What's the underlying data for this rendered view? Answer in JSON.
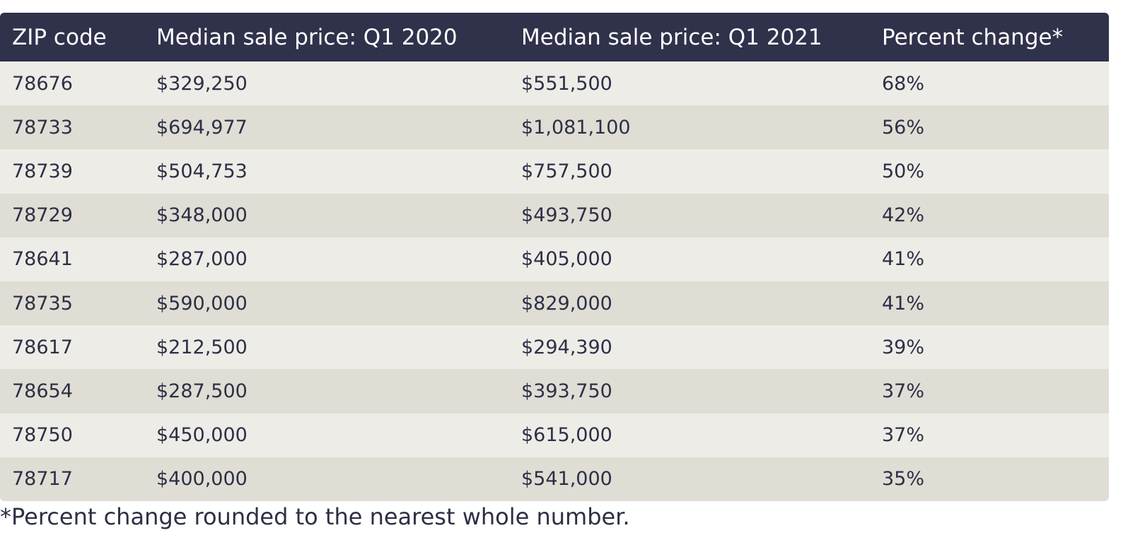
{
  "table": {
    "headers": [
      "ZIP code",
      "Median sale price: Q1 2020",
      "Median sale price: Q1 2021",
      "Percent change*"
    ],
    "rows": [
      [
        "78676",
        "$329,250",
        "$551,500",
        "68%"
      ],
      [
        "78733",
        "$694,977",
        "$1,081,100",
        "56%"
      ],
      [
        "78739",
        "$504,753",
        "$757,500",
        "50%"
      ],
      [
        "78729",
        "$348,000",
        "$493,750",
        "42%"
      ],
      [
        "78641",
        "$287,000",
        "$405,000",
        "41%"
      ],
      [
        "78735",
        "$590,000",
        "$829,000",
        "41%"
      ],
      [
        "78617",
        "$212,500",
        "$294,390",
        "39%"
      ],
      [
        "78654",
        "$287,500",
        "$393,750",
        "37%"
      ],
      [
        "78750",
        "$450,000",
        "$615,000",
        "37%"
      ],
      [
        "78717",
        "$400,000",
        "$541,000",
        "35%"
      ]
    ]
  },
  "footnote": "*Percent change rounded to the nearest whole number.",
  "colors": {
    "header_bg": "#30314b",
    "row_light": "#eeece7",
    "row_dark": "#e0ddd5",
    "text": "#2d2f45"
  }
}
